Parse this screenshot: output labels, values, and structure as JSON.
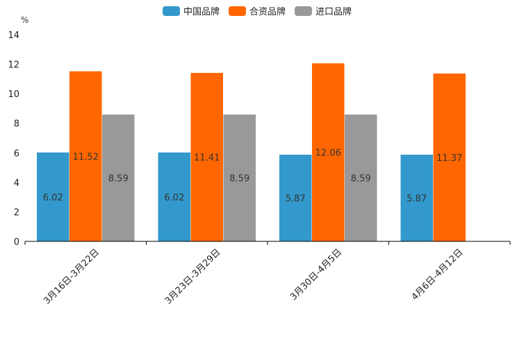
{
  "chart_data": {
    "type": "bar",
    "unit_label": "%",
    "categories": [
      "3月16日-3月22日",
      "3月23日-3月29日",
      "3月30日-4月5日",
      "4月6日-4月12日"
    ],
    "series": [
      {
        "name": "中国品牌",
        "color": "#3399cc",
        "values": [
          6.02,
          6.02,
          5.87,
          5.87
        ]
      },
      {
        "name": "合资品牌",
        "color": "#ff6600",
        "values": [
          11.52,
          11.41,
          12.06,
          11.37
        ]
      },
      {
        "name": "进口品牌",
        "color": "#999999",
        "values": [
          8.59,
          8.59,
          8.59,
          null
        ]
      }
    ],
    "ylim": [
      0,
      14
    ],
    "yticks": [
      0,
      2,
      4,
      6,
      8,
      10,
      12,
      14
    ],
    "legend_position": "top-center",
    "grid": false
  }
}
